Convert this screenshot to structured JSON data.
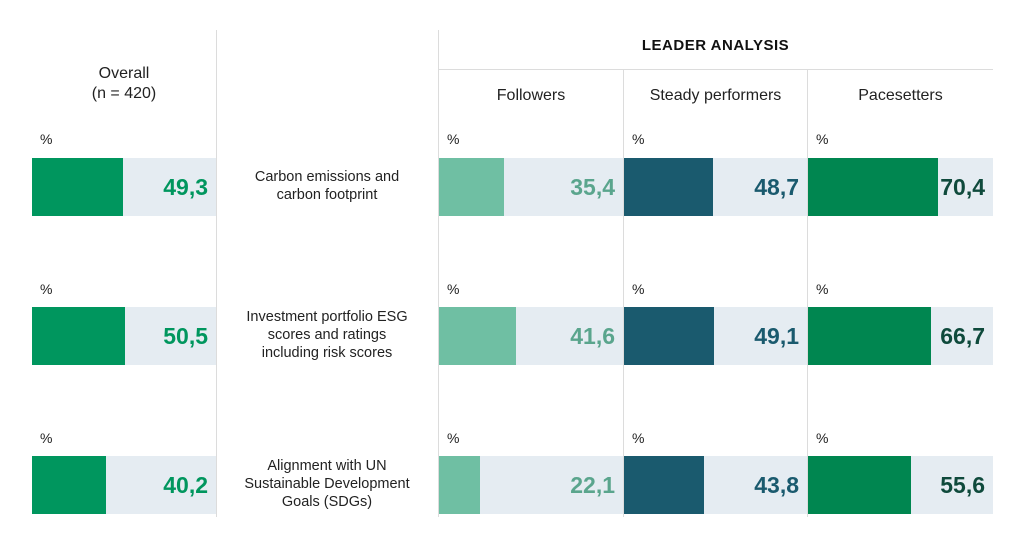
{
  "header": {
    "overall_line1": "Overall",
    "overall_line2": "(n = 420)",
    "leader_title": "LEADER ANALYSIS",
    "groups": [
      "Followers",
      "Steady performers",
      "Pacesetters"
    ]
  },
  "pct_symbol": "%",
  "colors": {
    "overall": "#00965e",
    "followers": "#6fbfa3",
    "steady": "#1a5a6e",
    "pacesetters": "#008650",
    "track": "#e5ecf2",
    "gridline": "#dcdcdc"
  },
  "chart_data": {
    "type": "bar",
    "orientation": "horizontal",
    "xlim": [
      0,
      100
    ],
    "categories": [
      [
        "Carbon emissions and",
        "carbon footprint"
      ],
      [
        "Investment portfolio ESG",
        "scores and ratings",
        "including risk scores"
      ],
      [
        "Alignment with UN",
        "Sustainable Development",
        "Goals (SDGs)"
      ]
    ],
    "series": [
      {
        "name": "Overall",
        "values": [
          "49,3",
          "50,5",
          "40,2"
        ]
      },
      {
        "name": "Followers",
        "values": [
          "35,4",
          "41,6",
          "22,1"
        ]
      },
      {
        "name": "Steady performers",
        "values": [
          "48,7",
          "49,1",
          "43,8"
        ]
      },
      {
        "name": "Pacesetters",
        "values": [
          "70,4",
          "66,7",
          "55,6"
        ]
      }
    ]
  }
}
